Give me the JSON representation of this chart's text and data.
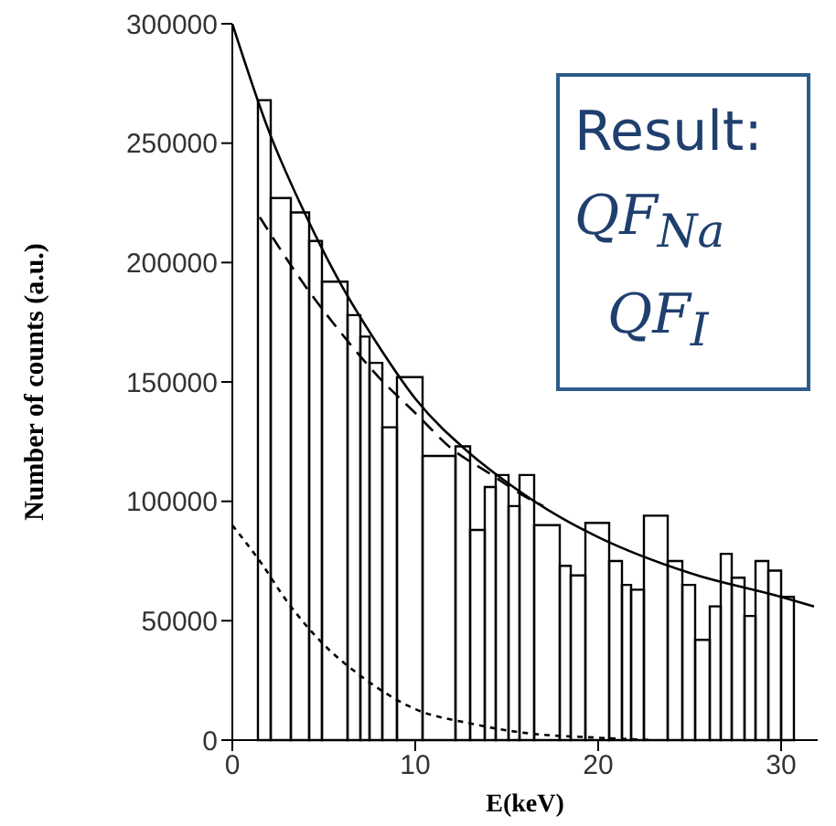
{
  "chart_data": {
    "type": "histogram",
    "xlabel": "E(keV)",
    "ylabel": "Number of counts (a.u.)",
    "bins": [
      1.4,
      2.1,
      3.2,
      4.2,
      4.9,
      6.3,
      7.0,
      7.5,
      8.2,
      9.0,
      10.4,
      12.2,
      13.0,
      13.8,
      14.4,
      15.1,
      15.7,
      16.5,
      17.9,
      18.5,
      19.3,
      20.6,
      21.3,
      21.8,
      22.5,
      23.8,
      24.6,
      25.3,
      26.1,
      26.7,
      27.3,
      28.0,
      28.6,
      29.3,
      30.0,
      30.7
    ],
    "values": [
      268000,
      227000,
      221000,
      209000,
      192000,
      178000,
      169000,
      158000,
      131000,
      152000,
      119000,
      123000,
      88000,
      106000,
      111000,
      98000,
      111000,
      90000,
      73000,
      69000,
      91000,
      75000,
      65000,
      63000,
      94000,
      75000,
      65000,
      42000,
      56000,
      78000,
      68000,
      52000,
      75000,
      71000,
      60000
    ],
    "color": "#000000",
    "series": [
      {
        "type": "line",
        "color": "#000000",
        "line_style": "solid",
        "x": [
          0,
          2,
          4,
          6,
          8,
          10,
          13,
          15,
          18,
          20,
          25,
          30,
          31.8
        ],
        "values": [
          300000,
          255000,
          220000,
          190000,
          165000,
          143000,
          120000,
          108000,
          93000,
          85000,
          70000,
          60000,
          56000
        ]
      },
      {
        "type": "line",
        "color": "#000000",
        "line_style": "dashed",
        "x": [
          1.5,
          4,
          6,
          8,
          10,
          12,
          14,
          16,
          17
        ],
        "values": [
          219000,
          190000,
          170000,
          152000,
          137000,
          122000,
          112000,
          102000,
          98000
        ]
      },
      {
        "type": "line",
        "color": "#000000",
        "line_style": "dotted",
        "x": [
          0,
          1.5,
          3,
          5,
          7,
          10,
          13,
          16,
          20,
          23
        ],
        "values": [
          90000,
          75000,
          58000,
          40000,
          27000,
          13000,
          7000,
          3000,
          1000,
          0
        ]
      }
    ],
    "marker": "none",
    "xlim": [
      0,
      32
    ],
    "xticks": [
      0,
      10,
      20,
      30
    ],
    "ylim": [
      0,
      300000
    ],
    "yticks": [
      0,
      50000,
      100000,
      150000,
      200000,
      250000,
      300000
    ],
    "annotations": [
      "Result:",
      "QF$_{Na}$",
      "QF$_{I}$"
    ]
  }
}
